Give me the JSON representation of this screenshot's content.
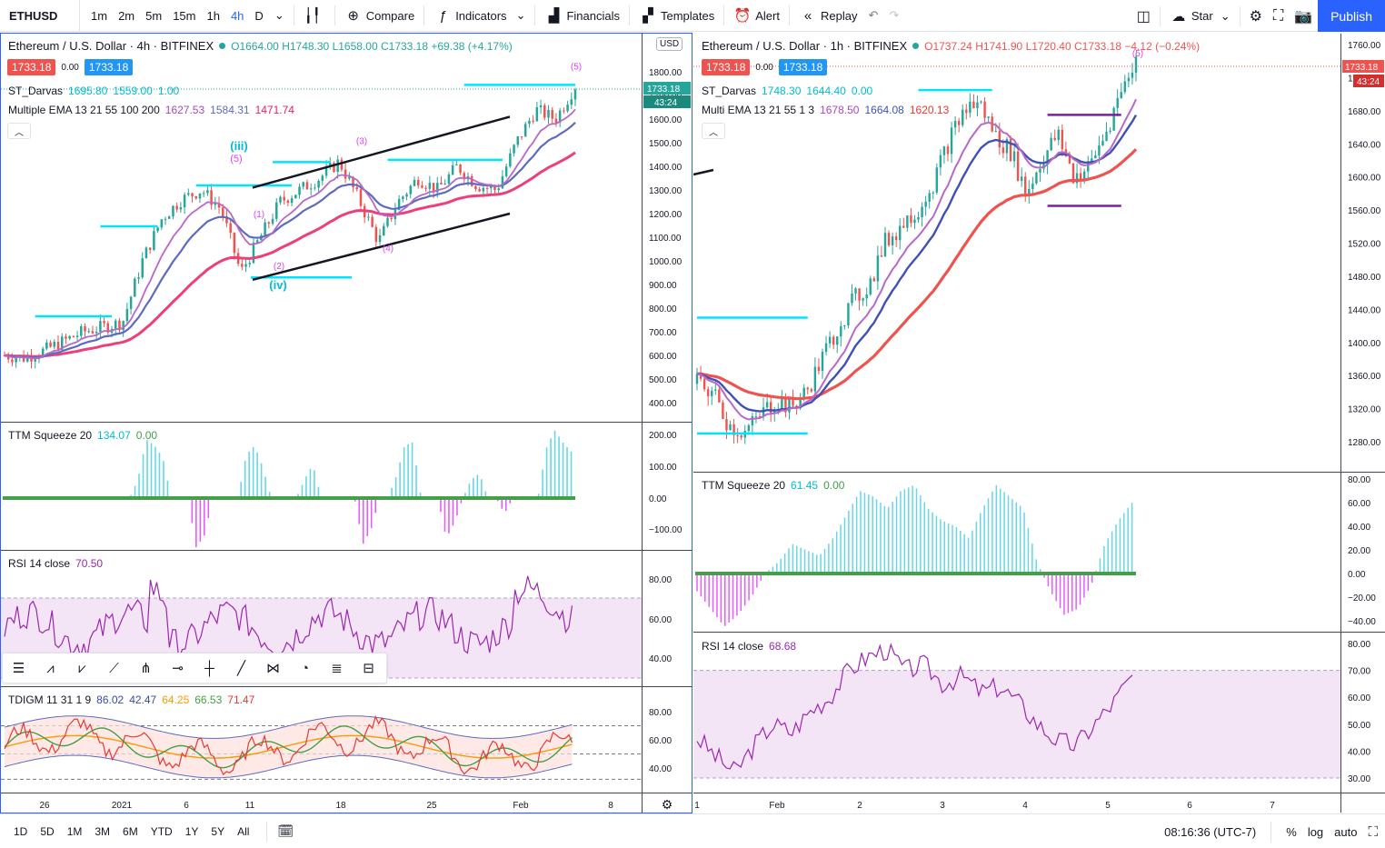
{
  "toolbar": {
    "symbol": "ETHUSD",
    "intervals": [
      "1m",
      "2m",
      "5m",
      "15m",
      "1h",
      "4h",
      "D"
    ],
    "active_interval": "4h",
    "compare_label": "Compare",
    "indicators_label": "Indicators",
    "financials_label": "Financials",
    "templates_label": "Templates",
    "alert_label": "Alert",
    "replay_label": "Replay",
    "star_label": "Star",
    "publish_label": "Publish"
  },
  "left_chart": {
    "title": "Ethereum / U.S. Dollar · 4h · BITFINEX",
    "ohlc": {
      "o": "O1664.00",
      "h": "H1748.30",
      "l": "L1658.00",
      "c": "C1733.18",
      "chg": "+69.38 (+4.17%)"
    },
    "bid": "1733.18",
    "spread": "0.00",
    "ask": "1733.18",
    "darvas_label": "ST_Darvas",
    "darvas_v1": "1695.80",
    "darvas_v2": "1559.00",
    "darvas_v3": "1.00",
    "ema_label": "Multiple EMA 13 21 55 100 200",
    "ema_v1": "1627.53",
    "ema_v2": "1584.31",
    "ema_v3": "1471.74",
    "currency": "USD",
    "last_price": "1733.18",
    "countdown": "43:24",
    "price_ticks": [
      "1800.00",
      "1700.00",
      "1600.00",
      "1500.00",
      "1400.00",
      "1300.00",
      "1200.00",
      "1100.00",
      "1000.00",
      "900.00",
      "800.00",
      "700.00",
      "600.00",
      "500.00",
      "400.00"
    ],
    "squeeze_label": "TTM Squeeze 20",
    "squeeze_v1": "134.07",
    "squeeze_v2": "0.00",
    "squeeze_ticks": [
      "200.00",
      "100.00",
      "0.00",
      "−100.00"
    ],
    "rsi_label": "RSI 14 close",
    "rsi_v1": "70.50",
    "rsi_ticks": [
      "80.00",
      "60.00",
      "40.00"
    ],
    "tdi_label": "TDIGM 11 31 1 9",
    "tdi_v1": "86.02",
    "tdi_v2": "42.47",
    "tdi_v3": "64.25",
    "tdi_v4": "66.53",
    "tdi_v5": "71.47",
    "tdi_ticks": [
      "80.00",
      "60.00",
      "40.00"
    ],
    "time_ticks": [
      "26",
      "2021",
      "6",
      "11",
      "18",
      "25",
      "Feb",
      "8"
    ],
    "wave_labels": [
      "(iii)",
      "(5)",
      "(iv)",
      "(1)",
      "(2)",
      "(3)",
      "(4)",
      "(5)"
    ]
  },
  "right_chart": {
    "title": "Ethereum / U.S. Dollar · 1h · BITFINEX",
    "ohlc": {
      "o": "O1737.24",
      "h": "H1741.90",
      "l": "L1720.40",
      "c": "C1733.18",
      "chg": "−4.12 (−0.24%)"
    },
    "bid": "1733.18",
    "spread": "0.00",
    "ask": "1733.18",
    "darvas_label": "ST_Darvas",
    "darvas_v1": "1748.30",
    "darvas_v2": "1644.40",
    "darvas_v3": "0.00",
    "ema_label": "Multi EMA 13 21 55 1 3",
    "ema_v1": "1678.50",
    "ema_v2": "1664.08",
    "ema_v3": "1620.13",
    "last_price": "1733.18",
    "countdown": "43:24",
    "price_ticks": [
      "1760.00",
      "1720.00",
      "1680.00",
      "1640.00",
      "1600.00",
      "1560.00",
      "1520.00",
      "1480.00",
      "1440.00",
      "1400.00",
      "1360.00",
      "1320.00",
      "1280.00"
    ],
    "squeeze_label": "TTM Squeeze 20",
    "squeeze_v1": "61.45",
    "squeeze_v2": "0.00",
    "squeeze_ticks": [
      "80.00",
      "60.00",
      "40.00",
      "20.00",
      "0.00",
      "−20.00",
      "−40.00"
    ],
    "rsi_label": "RSI 14 close",
    "rsi_v1": "68.68",
    "rsi_ticks": [
      "80.00",
      "70.00",
      "60.00",
      "50.00",
      "40.00",
      "30.00"
    ],
    "time_ticks": [
      "1",
      "Feb",
      "2",
      "3",
      "4",
      "5",
      "6",
      "7"
    ],
    "wave_label": "(5)"
  },
  "bottom": {
    "ranges": [
      "1D",
      "5D",
      "1M",
      "3M",
      "6M",
      "YTD",
      "1Y",
      "5Y",
      "All"
    ],
    "time": "08:16:36 (UTC-7)",
    "pct": "%",
    "log": "log",
    "auto": "auto"
  },
  "colors": {
    "accent": "#2962ff",
    "up": "#26a69a",
    "down": "#ef5350",
    "ema_fast": "#ba68c8",
    "ema_mid": "#5c6bc0",
    "ema_slow": "#ec407a",
    "darvas": "#00e5ff",
    "darvas_dark": "#7b1fa2",
    "rsi_band": "#f3e5f5",
    "wave": "#e040fb"
  }
}
